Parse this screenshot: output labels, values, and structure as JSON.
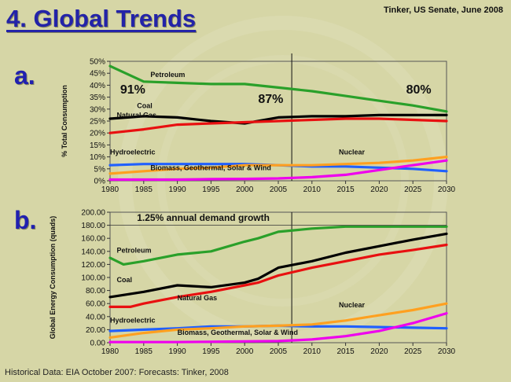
{
  "header": {
    "title": "4. Global Trends",
    "credit": "Tinker, US Senate, June 2008"
  },
  "panels": {
    "a_label": "a.",
    "b_label": "b."
  },
  "footer": "Historical Data: EIA October 2007:  Forecasts: Tinker, 2008",
  "colors": {
    "petroleum": "#2aa02a",
    "coal": "#000000",
    "natural_gas": "#e81010",
    "hydroelectric": "#2060ff",
    "nuclear": "#ffa020",
    "biomass": "#ee00ee",
    "background": "#d6d6a6"
  },
  "chart_data": [
    {
      "type": "line",
      "id": "a",
      "ylabel": "% Total Consumption",
      "xlabel": "",
      "ylim": [
        0,
        50
      ],
      "xlim": [
        1980,
        2030
      ],
      "x_ticks": [
        "1980",
        "1985",
        "1990",
        "1995",
        "2000",
        "2005",
        "2010",
        "2015",
        "2020",
        "2025",
        "2030"
      ],
      "y_ticks": [
        "0%",
        "5%",
        "10%",
        "15%",
        "20%",
        "25%",
        "30%",
        "35%",
        "40%",
        "45%",
        "50%"
      ],
      "divider_x": 2007,
      "annotations": [
        {
          "text": "91%",
          "x": 1981.5,
          "y": 36.5
        },
        {
          "text": "87%",
          "x": 2002,
          "y": 32.5
        },
        {
          "text": "80%",
          "x": 2024,
          "y": 36.5
        }
      ],
      "series": [
        {
          "name": "Petroleum",
          "key": "petroleum",
          "label_at": [
            1986,
            43.5
          ],
          "x": [
            1980,
            1985,
            1990,
            1995,
            2000,
            2005,
            2010,
            2015,
            2020,
            2025,
            2030
          ],
          "y": [
            48,
            41.5,
            41,
            40.5,
            40.5,
            39,
            37.5,
            35.5,
            33.5,
            31.5,
            29
          ]
        },
        {
          "name": "Coal",
          "key": "coal",
          "label_at": [
            1984,
            30.5
          ],
          "x": [
            1980,
            1985,
            1990,
            1995,
            2000,
            2005,
            2010,
            2015,
            2020,
            2025,
            2030
          ],
          "y": [
            26,
            27,
            26.5,
            25,
            24,
            26.5,
            27,
            27,
            27.5,
            27.5,
            27.5
          ]
        },
        {
          "name": "Natural Gas",
          "key": "natural_gas",
          "label_at": [
            1981,
            26.5
          ],
          "x": [
            1980,
            1985,
            1990,
            1995,
            2000,
            2005,
            2010,
            2015,
            2020,
            2025,
            2030
          ],
          "y": [
            20,
            21.5,
            23.5,
            24,
            24.5,
            25,
            25.5,
            26,
            26,
            25.5,
            25
          ]
        },
        {
          "name": "Hydroelectric",
          "key": "hydroelectric",
          "label_at": [
            1980,
            11
          ],
          "x": [
            1980,
            1985,
            1990,
            1995,
            2000,
            2005,
            2010,
            2015,
            2020,
            2025,
            2030
          ],
          "y": [
            6.5,
            7,
            7,
            7,
            7,
            6.5,
            6,
            6,
            5.5,
            5,
            4
          ]
        },
        {
          "name": "Nuclear",
          "key": "nuclear",
          "label_at": [
            2014,
            11
          ],
          "x": [
            1980,
            1985,
            1990,
            1995,
            2000,
            2005,
            2010,
            2015,
            2020,
            2025,
            2030
          ],
          "y": [
            3,
            4,
            5,
            5.5,
            6.5,
            6.5,
            6.5,
            7,
            7.5,
            8.5,
            10
          ]
        },
        {
          "name": "Biomass, Geothermal, Solar & Wind",
          "key": "biomass",
          "label_at": [
            1986,
            4.5
          ],
          "x": [
            1980,
            1985,
            1990,
            1995,
            2000,
            2005,
            2010,
            2015,
            2020,
            2025,
            2030
          ],
          "y": [
            0.5,
            0.5,
            0.5,
            0.7,
            0.8,
            1,
            1.5,
            2.5,
            4.5,
            6.5,
            8.5
          ]
        }
      ]
    },
    {
      "type": "line",
      "id": "b",
      "ylabel": "Global Energy Consumption (quads)",
      "xlabel": "",
      "ylim": [
        0,
        200
      ],
      "xlim": [
        1980,
        2030
      ],
      "x_ticks": [
        "1980",
        "1985",
        "1990",
        "1995",
        "2000",
        "2005",
        "2010",
        "2015",
        "2020",
        "2025",
        "2030"
      ],
      "y_ticks": [
        "0.00",
        "20.00",
        "40.00",
        "60.00",
        "80.00",
        "100.00",
        "120.00",
        "140.00",
        "160.00",
        "180.00",
        "200.00"
      ],
      "divider_x": 2007,
      "annotations": [
        {
          "text": "1.25% annual demand growth",
          "x": 1984,
          "y": 187
        }
      ],
      "series": [
        {
          "name": "Petroleum",
          "key": "petroleum",
          "label_at": [
            1981,
            138
          ],
          "x": [
            1980,
            1982,
            1985,
            1990,
            1995,
            2000,
            2002,
            2005,
            2010,
            2015,
            2020,
            2025,
            2030
          ],
          "y": [
            130,
            120,
            125,
            135,
            140,
            155,
            160,
            170,
            175,
            178,
            178,
            178,
            178
          ]
        },
        {
          "name": "Coal",
          "key": "coal",
          "label_at": [
            1981,
            93
          ],
          "x": [
            1980,
            1985,
            1990,
            1995,
            2000,
            2002,
            2005,
            2010,
            2015,
            2020,
            2025,
            2030
          ],
          "y": [
            70,
            78,
            88,
            85,
            92,
            98,
            115,
            125,
            138,
            148,
            158,
            167
          ]
        },
        {
          "name": "Natural Gas",
          "key": "natural_gas",
          "label_at": [
            1990,
            65
          ],
          "x": [
            1980,
            1983,
            1985,
            1990,
            1995,
            2000,
            2002,
            2005,
            2010,
            2015,
            2020,
            2025,
            2030
          ],
          "y": [
            55,
            55,
            60,
            70,
            78,
            88,
            92,
            103,
            115,
            125,
            135,
            142,
            150
          ]
        },
        {
          "name": "Hydroelectric",
          "key": "hydroelectric",
          "label_at": [
            1980,
            31
          ],
          "x": [
            1980,
            1985,
            1990,
            1995,
            2000,
            2005,
            2010,
            2015,
            2020,
            2025,
            2030
          ],
          "y": [
            18,
            20,
            22,
            25,
            25,
            26,
            25,
            25,
            24,
            23,
            22
          ]
        },
        {
          "name": "Nuclear",
          "key": "nuclear",
          "label_at": [
            2014,
            54
          ],
          "x": [
            1980,
            1985,
            1990,
            1995,
            2000,
            2005,
            2010,
            2015,
            2020,
            2025,
            2030
          ],
          "y": [
            8,
            15,
            20,
            22,
            25,
            26,
            28,
            34,
            42,
            50,
            60
          ]
        },
        {
          "name": "Biomass, Geothermal, Solar & Wind",
          "key": "biomass",
          "label_at": [
            1990,
            12
          ],
          "x": [
            1980,
            1985,
            1990,
            1995,
            2000,
            2005,
            2010,
            2015,
            2020,
            2025,
            2030
          ],
          "y": [
            1,
            1,
            1,
            1.5,
            2,
            2.5,
            5,
            10,
            18,
            30,
            45
          ]
        }
      ]
    }
  ]
}
